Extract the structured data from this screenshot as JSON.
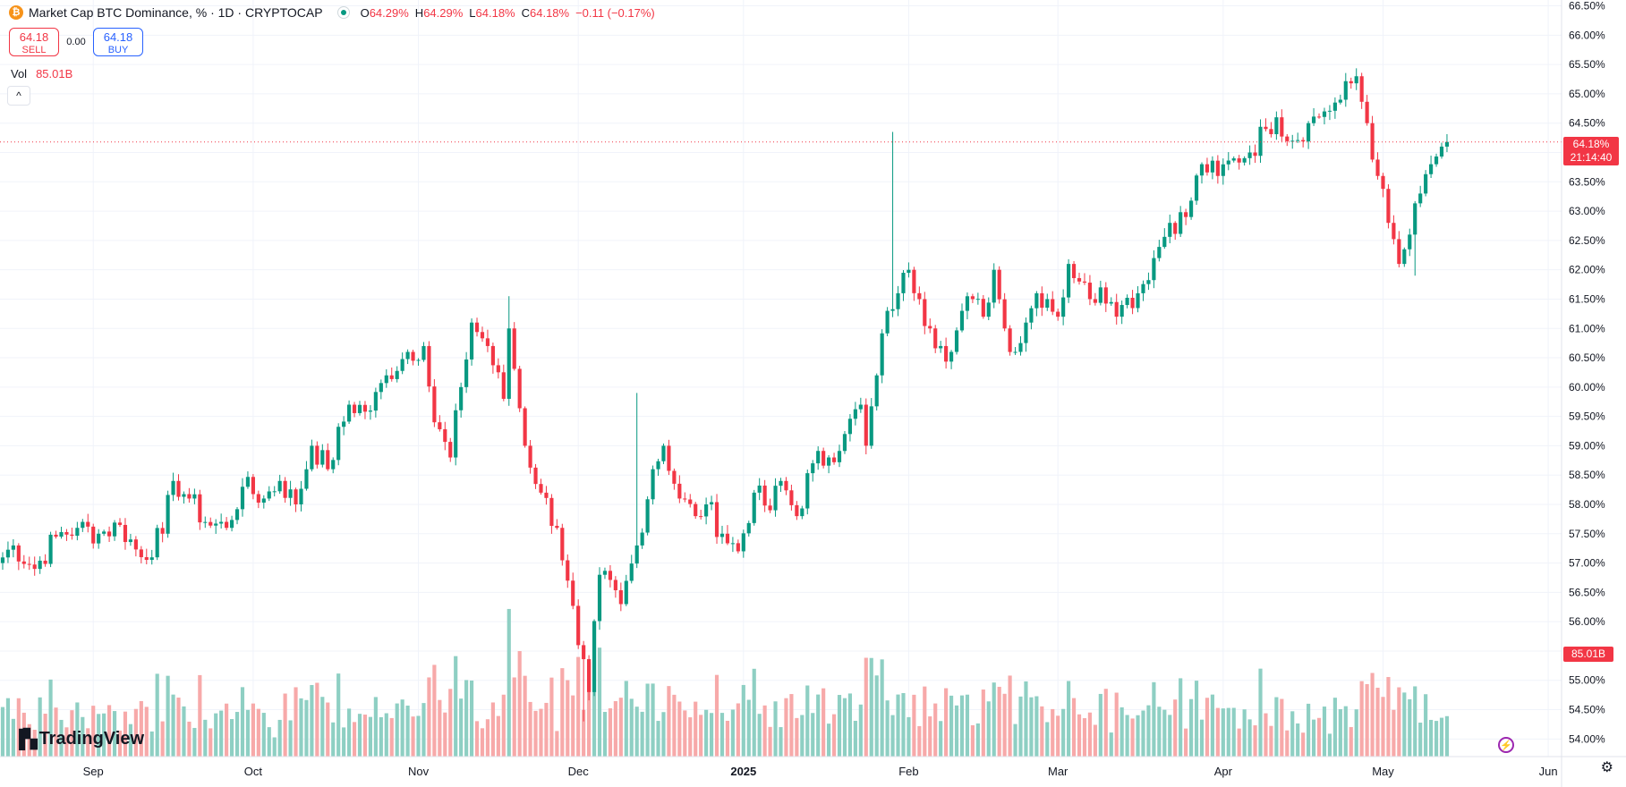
{
  "header": {
    "symbol_icon": "bitcoin-icon",
    "title": "Market Cap BTC Dominance, % · 1D · CRYPTOCAP",
    "ohlc": [
      {
        "k": "O",
        "v": "64.29%"
      },
      {
        "k": "H",
        "v": "64.29%"
      },
      {
        "k": "L",
        "v": "64.18%"
      },
      {
        "k": "C",
        "v": "64.18%"
      }
    ],
    "change": "−0.11 (−0.17%)"
  },
  "trade": {
    "sell_price": "64.18",
    "sell_label": "SELL",
    "spread": "0.00",
    "buy_price": "64.18",
    "buy_label": "BUY"
  },
  "volume_legend": {
    "label": "Vol",
    "value": "85.01B"
  },
  "price_tag": {
    "price": "64.18%",
    "countdown": "21:14:40"
  },
  "volume_tag": "85.01B",
  "brand": "TradingView",
  "colors": {
    "up": "#089981",
    "down": "#f23645",
    "vol_up": "#8ecfc3",
    "vol_down": "#f7a9a9",
    "grid": "#f0f3fa"
  },
  "chart_data": {
    "type": "candlestick",
    "title": "Market Cap BTC Dominance, %",
    "interval": "1D",
    "ylim": [
      53.7,
      66.6
    ],
    "y_ticks": [
      "66.50%",
      "66.00%",
      "65.50%",
      "65.00%",
      "64.50%",
      "64.00%",
      "63.50%",
      "63.00%",
      "62.50%",
      "62.00%",
      "61.50%",
      "61.00%",
      "60.50%",
      "60.00%",
      "59.50%",
      "59.00%",
      "58.50%",
      "58.00%",
      "57.50%",
      "57.00%",
      "56.50%",
      "56.00%",
      "55.50%",
      "55.00%",
      "54.50%",
      "54.00%"
    ],
    "x_ticks": [
      {
        "label": "Sep",
        "day": 25
      },
      {
        "label": "Oct",
        "day": 55
      },
      {
        "label": "Nov",
        "day": 86
      },
      {
        "label": "Dec",
        "day": 116
      },
      {
        "label": "2025",
        "day": 147
      },
      {
        "label": "Feb",
        "day": 178
      },
      {
        "label": "Mar",
        "day": 206
      },
      {
        "label": "Apr",
        "day": 237
      },
      {
        "label": "May",
        "day": 267
      },
      {
        "label": "Jun",
        "day": 298
      }
    ],
    "x_range": [
      7.5,
      300.5
    ],
    "last_price": 64.18,
    "close_anchors": [
      [
        7,
        57.0
      ],
      [
        10,
        57.3
      ],
      [
        14,
        56.9
      ],
      [
        18,
        57.45
      ],
      [
        22,
        57.6
      ],
      [
        26,
        57.5
      ],
      [
        30,
        57.65
      ],
      [
        34,
        57.1
      ],
      [
        38,
        57.5
      ],
      [
        40,
        58.4
      ],
      [
        43,
        58.1
      ],
      [
        46,
        57.7
      ],
      [
        50,
        57.6
      ],
      [
        53,
        58.3
      ],
      [
        57,
        58.1
      ],
      [
        60,
        58.4
      ],
      [
        63,
        58.0
      ],
      [
        66,
        59.0
      ],
      [
        69,
        58.6
      ],
      [
        73,
        59.7
      ],
      [
        77,
        59.6
      ],
      [
        80,
        60.2
      ],
      [
        84,
        60.6
      ],
      [
        87,
        60.7
      ],
      [
        89,
        59.4
      ],
      [
        92,
        58.8
      ],
      [
        94,
        60.0
      ],
      [
        96,
        61.1
      ],
      [
        99,
        60.7
      ],
      [
        102,
        59.8
      ],
      [
        103,
        61.0
      ],
      [
        106,
        59.0
      ],
      [
        109,
        58.2
      ],
      [
        112,
        57.6
      ],
      [
        114,
        56.7
      ],
      [
        116,
        55.6
      ],
      [
        118,
        54.8
      ],
      [
        120,
        56.8
      ],
      [
        124,
        56.3
      ],
      [
        127,
        57.3
      ],
      [
        130,
        58.6
      ],
      [
        132,
        59.0
      ],
      [
        135,
        58.1
      ],
      [
        138,
        57.8
      ],
      [
        140,
        58.0
      ],
      [
        143,
        57.5
      ],
      [
        146,
        57.2
      ],
      [
        149,
        58.2
      ],
      [
        152,
        57.9
      ],
      [
        154,
        58.4
      ],
      [
        157,
        57.8
      ],
      [
        160,
        58.7
      ],
      [
        163,
        58.8
      ],
      [
        166,
        59.2
      ],
      [
        169,
        59.7
      ],
      [
        170,
        59.0
      ],
      [
        172,
        60.2
      ],
      [
        174,
        61.3
      ],
      [
        176,
        61.6
      ],
      [
        178,
        62.0
      ],
      [
        180,
        61.5
      ],
      [
        182,
        61.0
      ],
      [
        184,
        60.7
      ],
      [
        186,
        60.6
      ],
      [
        188,
        61.3
      ],
      [
        190,
        61.5
      ],
      [
        192,
        61.2
      ],
      [
        194,
        62.0
      ],
      [
        196,
        61.0
      ],
      [
        198,
        60.6
      ],
      [
        200,
        61.1
      ],
      [
        202,
        61.6
      ],
      [
        204,
        61.5
      ],
      [
        206,
        61.2
      ],
      [
        208,
        62.1
      ],
      [
        210,
        61.8
      ],
      [
        212,
        61.5
      ],
      [
        214,
        61.7
      ],
      [
        216,
        61.45
      ],
      [
        218,
        61.4
      ],
      [
        221,
        61.6
      ],
      [
        224,
        62.2
      ],
      [
        227,
        62.8
      ],
      [
        230,
        62.9
      ],
      [
        233,
        63.8
      ],
      [
        236,
        63.6
      ],
      [
        239,
        63.9
      ],
      [
        242,
        64.0
      ],
      [
        245,
        64.4
      ],
      [
        247,
        64.6
      ],
      [
        250,
        64.2
      ],
      [
        253,
        64.5
      ],
      [
        256,
        64.7
      ],
      [
        259,
        64.9
      ],
      [
        262,
        65.3
      ],
      [
        264,
        64.5
      ],
      [
        266,
        63.6
      ],
      [
        268,
        62.8
      ],
      [
        270,
        62.1
      ],
      [
        272,
        62.6
      ],
      [
        274,
        63.3
      ],
      [
        276,
        63.8
      ],
      [
        278,
        64.1
      ],
      [
        279,
        64.2
      ]
    ],
    "notable_wicks": [
      {
        "day": 103,
        "high": 61.55
      },
      {
        "day": 117,
        "low": 54.3
      },
      {
        "day": 127,
        "high": 59.9
      },
      {
        "day": 175,
        "high": 64.35
      },
      {
        "day": 273,
        "low": 61.9
      }
    ],
    "volume_range_billions": [
      0,
      175
    ],
    "volume_last": "85.01B"
  }
}
